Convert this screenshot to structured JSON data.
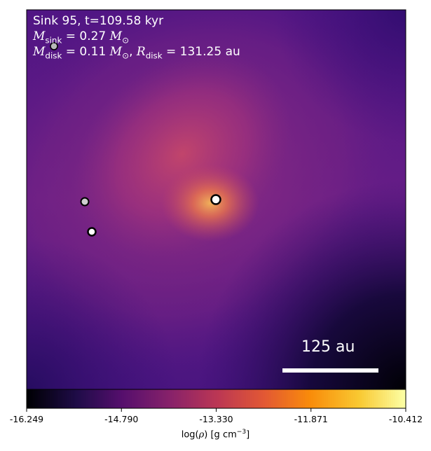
{
  "panel": {
    "title": "Sink 95, t=109.58 kyr",
    "sink_mass": {
      "symbol": "M",
      "subscript": "sink",
      "value": "= 0.27",
      "unit_symbol": "M",
      "unit_subscript": "⊙"
    },
    "disk_props": {
      "mass_symbol": "M",
      "mass_subscript": "disk",
      "mass_value": "= 0.11",
      "unit_symbol": "M",
      "unit_subscript": "⊙",
      "radius_symbol": "R",
      "radius_subscript": "disk",
      "radius_value": "= 131.25 au"
    },
    "scale_bar_label": "125 au"
  },
  "sinks": [
    {
      "name": "central-sink",
      "highlight": true
    },
    {
      "name": "sink-left-upper",
      "highlight": false
    },
    {
      "name": "sink-left-lower",
      "highlight": true
    },
    {
      "name": "sink-top-left",
      "highlight": false
    }
  ],
  "colorbar": {
    "colormap": "plasma",
    "ticks": [
      "-16.249",
      "-14.790",
      "-13.330",
      "-11.871",
      "-10.412"
    ],
    "label_prefix": "log(",
    "label_symbol": "ρ",
    "label_suffix": ") [g cm",
    "label_exponent": "−3",
    "label_close": "]"
  },
  "colors": {
    "text": "#ffffff",
    "scale_bar": "#ffffff"
  }
}
